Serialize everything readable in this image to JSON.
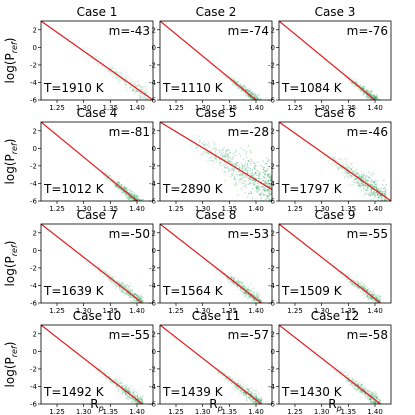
{
  "chart_data": {
    "type": "scatter",
    "layout": "4x4 grid of panels (12 shown, 4 rows x 3 columns)",
    "xlabel": "R_p",
    "ylabel": "log(P_ref)",
    "xlim": [
      1.22,
      1.43
    ],
    "ylim": [
      -6,
      3
    ],
    "xticks": [
      "1.25",
      "1.30",
      "1.35",
      "1.40"
    ],
    "yticks": [
      "2",
      "0",
      "-2",
      "-4",
      "-6"
    ],
    "fit_line_color": "#e31a1c",
    "point_color": "#2ca25f",
    "panels": [
      {
        "title": "Case 1",
        "m_label": "m=-43",
        "slope": -43,
        "T_label": "T=1910 K",
        "line": {
          "x0": 1.22,
          "y0": 3.0,
          "x1": 1.43,
          "y1": -6.0
        },
        "cloud": {
          "x_range": [
            1.3,
            1.42
          ],
          "spread": 0.5,
          "density": 0.25
        }
      },
      {
        "title": "Case 2",
        "m_label": "m=-74",
        "slope": -74,
        "T_label": "T=1110 K",
        "line": {
          "x0": 1.22,
          "y0": 3.0,
          "x1": 1.4,
          "y1": -6.0
        },
        "cloud": {
          "x_range": [
            1.34,
            1.41
          ],
          "spread": 0.35,
          "density": 0.6
        }
      },
      {
        "title": "Case 3",
        "m_label": "m=-76",
        "slope": -76,
        "T_label": "T=1084 K",
        "line": {
          "x0": 1.22,
          "y0": 3.0,
          "x1": 1.4,
          "y1": -6.0
        },
        "cloud": {
          "x_range": [
            1.34,
            1.41
          ],
          "spread": 0.35,
          "density": 0.6
        }
      },
      {
        "title": "Case 4",
        "m_label": "m=-81",
        "slope": -81,
        "T_label": "T=1012 K",
        "line": {
          "x0": 1.22,
          "y0": 3.0,
          "x1": 1.4,
          "y1": -6.0
        },
        "cloud": {
          "x_range": [
            1.33,
            1.41
          ],
          "spread": 0.35,
          "density": 0.7
        }
      },
      {
        "title": "Case 5",
        "m_label": "m=-28",
        "slope": -28,
        "T_label": "T=2890 K",
        "line": {
          "x0": 1.22,
          "y0": 3.0,
          "x1": 1.43,
          "y1": -4.7
        },
        "cloud": {
          "x_range": [
            1.27,
            1.43
          ],
          "spread": 1.3,
          "density": 1.0
        }
      },
      {
        "title": "Case 6",
        "m_label": "m=-46",
        "slope": -46,
        "T_label": "T=1797 K",
        "line": {
          "x0": 1.22,
          "y0": 3.0,
          "x1": 1.43,
          "y1": -6.0
        },
        "cloud": {
          "x_range": [
            1.3,
            1.42
          ],
          "spread": 0.7,
          "density": 0.8
        }
      },
      {
        "title": "Case 7",
        "m_label": "m=-50",
        "slope": -50,
        "T_label": "T=1639 K",
        "line": {
          "x0": 1.22,
          "y0": 3.0,
          "x1": 1.41,
          "y1": -6.0
        },
        "cloud": {
          "x_range": [
            1.32,
            1.41
          ],
          "spread": 0.4,
          "density": 0.55
        }
      },
      {
        "title": "Case 8",
        "m_label": "m=-53",
        "slope": -53,
        "T_label": "T=1564 K",
        "line": {
          "x0": 1.22,
          "y0": 3.0,
          "x1": 1.41,
          "y1": -6.0
        },
        "cloud": {
          "x_range": [
            1.32,
            1.41
          ],
          "spread": 0.4,
          "density": 0.55
        }
      },
      {
        "title": "Case 9",
        "m_label": "m=-55",
        "slope": -55,
        "T_label": "T=1509 K",
        "line": {
          "x0": 1.22,
          "y0": 3.0,
          "x1": 1.41,
          "y1": -6.0
        },
        "cloud": {
          "x_range": [
            1.32,
            1.41
          ],
          "spread": 0.4,
          "density": 0.5
        }
      },
      {
        "title": "Case 10",
        "m_label": "m=-55",
        "slope": -55,
        "T_label": "T=1492 K",
        "line": {
          "x0": 1.22,
          "y0": 3.0,
          "x1": 1.41,
          "y1": -6.0
        },
        "cloud": {
          "x_range": [
            1.32,
            1.41
          ],
          "spread": 0.4,
          "density": 0.55
        }
      },
      {
        "title": "Case 11",
        "m_label": "m=-57",
        "slope": -57,
        "T_label": "T=1439 K",
        "line": {
          "x0": 1.22,
          "y0": 3.0,
          "x1": 1.41,
          "y1": -6.0
        },
        "cloud": {
          "x_range": [
            1.32,
            1.41
          ],
          "spread": 0.4,
          "density": 0.55
        }
      },
      {
        "title": "Case 12",
        "m_label": "m=-58",
        "slope": -58,
        "T_label": "T=1430 K",
        "line": {
          "x0": 1.22,
          "y0": 3.0,
          "x1": 1.41,
          "y1": -6.0
        },
        "cloud": {
          "x_range": [
            1.32,
            1.41
          ],
          "spread": 0.4,
          "density": 0.55
        }
      }
    ]
  }
}
